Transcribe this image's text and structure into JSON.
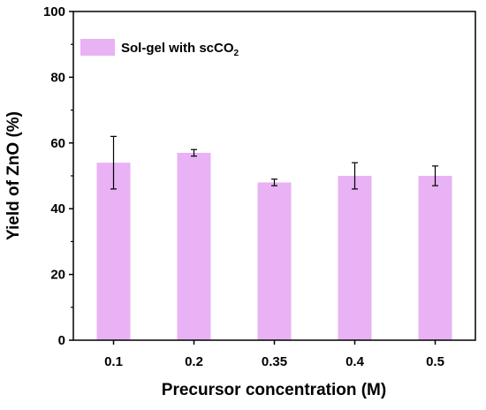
{
  "chart_data": {
    "type": "bar",
    "categories": [
      "0.1",
      "0.2",
      "0.35",
      "0.4",
      "0.5"
    ],
    "series": [
      {
        "name": "Sol-gel with scCO₂",
        "values": [
          54,
          57,
          48,
          50,
          50
        ],
        "errors": [
          8,
          1,
          1,
          4,
          3
        ],
        "color": "#e9b2f4"
      }
    ],
    "xlabel": "Precursor concentration (M)",
    "ylabel": "Yield of ZnO (%)",
    "ylim": [
      0,
      100
    ],
    "yticks": [
      0,
      20,
      40,
      60,
      80,
      100
    ],
    "legend": {
      "placement": "top-left",
      "label_main": "Sol-gel with scCO",
      "label_sub": "2"
    },
    "grid": false
  }
}
